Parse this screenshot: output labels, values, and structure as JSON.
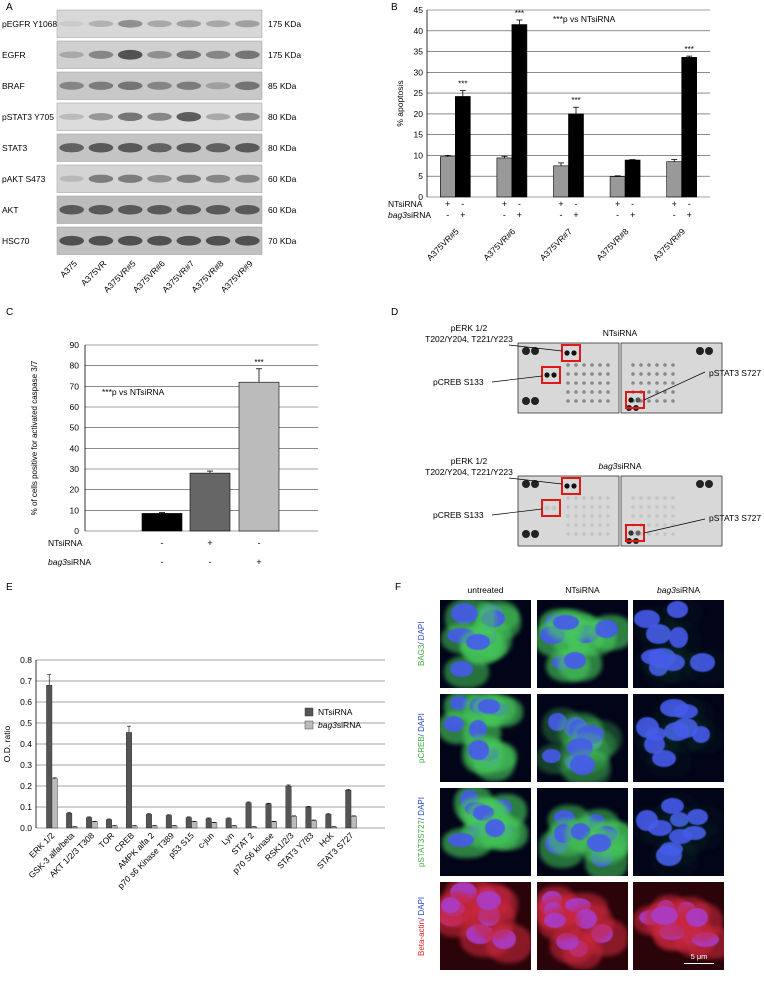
{
  "panels": {
    "a": {
      "letter": "A",
      "rows": [
        {
          "label": "pEGFR Y1068",
          "kda": "175 KDa",
          "intensity": [
            0.1,
            0.25,
            0.45,
            0.3,
            0.35,
            0.3,
            0.35
          ],
          "bg": "#d8d8d8"
        },
        {
          "label": "EGFR",
          "kda": "175 KDa",
          "intensity": [
            0.3,
            0.5,
            0.8,
            0.45,
            0.6,
            0.5,
            0.6
          ],
          "bg": "#d0d0d0"
        },
        {
          "label": "BRAF",
          "kda": "85 KDa",
          "intensity": [
            0.5,
            0.55,
            0.6,
            0.5,
            0.55,
            0.35,
            0.6
          ],
          "bg": "#c8c8c8"
        },
        {
          "label": "pSTAT3 Y705",
          "kda": "80 KDa",
          "intensity": [
            0.2,
            0.4,
            0.6,
            0.5,
            0.75,
            0.3,
            0.5
          ],
          "bg": "#dcdcdc"
        },
        {
          "label": "STAT3",
          "kda": "80 KDa",
          "intensity": [
            0.7,
            0.75,
            0.75,
            0.7,
            0.75,
            0.7,
            0.75
          ],
          "bg": "#c4c4c4"
        },
        {
          "label": "pAKT S473",
          "kda": "60 KDa",
          "intensity": [
            0.2,
            0.55,
            0.55,
            0.45,
            0.55,
            0.5,
            0.5
          ],
          "bg": "#d4d4d4"
        },
        {
          "label": "AKT",
          "kda": "60 KDa",
          "intensity": [
            0.75,
            0.75,
            0.75,
            0.75,
            0.75,
            0.75,
            0.75
          ],
          "bg": "#bcbcbc"
        },
        {
          "label": "HSC70",
          "kda": "70 KDa",
          "intensity": [
            0.8,
            0.8,
            0.8,
            0.8,
            0.8,
            0.8,
            0.8
          ],
          "bg": "#c0c0c0"
        }
      ],
      "lanes": [
        "A375",
        "A375VR",
        "A375VR#5",
        "A375VR#6",
        "A375VR#7",
        "A375VR#8",
        "A375VR#9"
      ]
    },
    "b": {
      "letter": "B",
      "annotation": "***p vs NTsiRNA",
      "chart_data": {
        "type": "bar",
        "ylabel": "% apoptosis",
        "ylim": [
          0,
          45
        ],
        "yticks": [
          0,
          5,
          10,
          15,
          20,
          25,
          30,
          35,
          40,
          45
        ],
        "grid": true,
        "categories": [
          "A375VR#5",
          "A375VR#6",
          "A375VR#7",
          "A375VR#8",
          "A375VR#9"
        ],
        "series": [
          {
            "values": [
              9.7,
              9.4,
              7.5,
              4.9,
              8.5
            ],
            "errors": [
              0.3,
              0.4,
              0.7,
              0.2,
              0.5
            ],
            "color": "#999999"
          },
          {
            "values": [
              24.2,
              41.5,
              20,
              8.9,
              33.6
            ],
            "errors": [
              1.4,
              1.1,
              1.6,
              0.1,
              0.3
            ],
            "color": "#000000"
          }
        ],
        "significance": [
          "***",
          "***",
          "***",
          "",
          "***"
        ],
        "treatments": [
          {
            "label": "NTsiRNA",
            "signs": [
              "+",
              "-"
            ]
          },
          {
            "label": "bag3siRNA",
            "signs": [
              "-",
              "+"
            ]
          }
        ]
      }
    },
    "c": {
      "letter": "C",
      "annotation": "***p vs NTsiRNA",
      "chart_data": {
        "type": "bar",
        "ylabel": "% of cells positive for activated caspase 3/7",
        "ylim": [
          0,
          90
        ],
        "yticks": [
          0,
          10,
          20,
          30,
          40,
          50,
          60,
          70,
          80,
          90
        ],
        "grid": true,
        "values": [
          8.5,
          28,
          72
        ],
        "errors": [
          0.4,
          1,
          6.5
        ],
        "colors": [
          "#000000",
          "#666666",
          "#bbbbbb"
        ],
        "significance": [
          "",
          "",
          "***"
        ],
        "treatments": [
          {
            "label": "NTsiRNA",
            "signs": [
              "-",
              "+",
              "-"
            ]
          },
          {
            "label": "bag3siRNA",
            "signs": [
              "-",
              "-",
              "+"
            ]
          }
        ]
      }
    },
    "d": {
      "letter": "D",
      "blocks": [
        {
          "title": "NTsiRNA",
          "perk_label1": "pERK 1/2",
          "perk_label2": "T202/Y204, T221/Y223",
          "pcreb_label": "pCREB S133",
          "pstat_label": "pSTAT3 S727"
        },
        {
          "title": "bag3siRNA",
          "perk_label1": "pERK 1/2",
          "perk_label2": "T202/Y204, T221/Y223",
          "pcreb_label": "pCREB S133",
          "pstat_label": "pSTAT3 S727"
        }
      ]
    },
    "e": {
      "letter": "E",
      "chart_data": {
        "type": "bar",
        "ylabel": "O.D. ratio",
        "ylim": [
          0,
          0.8
        ],
        "yticks": [
          0,
          0.1,
          0.2,
          0.3,
          0.4,
          0.5,
          0.6,
          0.7,
          0.8
        ],
        "ytick_labels": [
          "0.0",
          "0.1",
          "0.2",
          "0.3",
          "0.4",
          "0.5",
          "0.6",
          "0.7",
          "0.8"
        ],
        "grid": true,
        "categories": [
          "ERK 1/2",
          "GSK-3 alfa/beta",
          "AKT 1/2/3 T308",
          "TOR",
          "CREB",
          "AMPK alfa 2",
          "p70 s6 Kinase T389",
          "p53 S15",
          "c-jun",
          "Lyn",
          "STAT 2",
          "p70 S6 kinase",
          "RSK1/2/3",
          "STAT3 Y783",
          "HcK",
          "STAT3 S727"
        ],
        "series": [
          {
            "name": "NTsiRNA",
            "color": "#555555",
            "values": [
              0.68,
              0.07,
              0.05,
              0.04,
              0.455,
              0.065,
              0.06,
              0.05,
              0.045,
              0.045,
              0.12,
              0.115,
              0.2,
              0.1,
              0.065,
              0.18
            ],
            "errors": [
              0.05,
              0.005,
              0.003,
              0.003,
              0.03,
              0.003,
              0.003,
              0.003,
              0.003,
              0.003,
              0.004,
              0.003,
              0.005,
              0.003,
              0.003,
              0.004
            ]
          },
          {
            "name": "bag3siRNA",
            "color": "#bbbbbb",
            "values": [
              0.235,
              0.005,
              0.03,
              0.01,
              0.01,
              0.01,
              0.01,
              0.03,
              0.025,
              0.01,
              0.005,
              0.03,
              0.055,
              0.035,
              0.005,
              0.055
            ],
            "errors": [
              0.004,
              0.002,
              0.002,
              0.002,
              0.002,
              0.002,
              0.002,
              0.002,
              0.002,
              0.002,
              0.002,
              0.002,
              0.003,
              0.003,
              0.002,
              0.003
            ]
          }
        ],
        "legend_position": "right"
      }
    },
    "f": {
      "letter": "F",
      "columns": [
        "untreated",
        "NTsiRNA",
        "bag3siRNA"
      ],
      "rows": [
        {
          "label_green": "BAG3",
          "label_sep": "/ DAPI",
          "stain": "green",
          "levels": [
            0.8,
            0.9,
            0.05
          ]
        },
        {
          "label_green": "pCREB",
          "label_sep": "/ DAPI",
          "stain": "green",
          "levels": [
            0.9,
            0.45,
            0.05
          ]
        },
        {
          "label_green": "pSTAT3S727",
          "label_sep": "/ DAPI",
          "stain": "green",
          "levels": [
            0.9,
            0.8,
            0.05
          ]
        },
        {
          "label_green": "Beta-actin",
          "label_sep": "/ DAPI",
          "stain": "red",
          "levels": [
            0.8,
            0.8,
            0.8
          ]
        }
      ],
      "scalebar": "5 μm"
    }
  }
}
